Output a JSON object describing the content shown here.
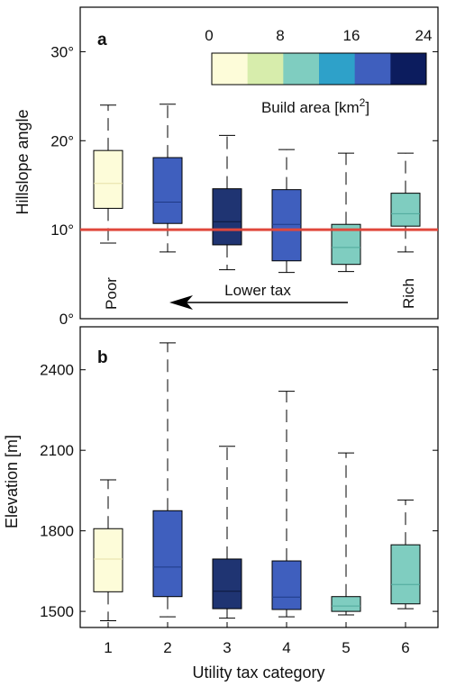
{
  "chart_data": [
    {
      "panel": "a",
      "type": "box",
      "ylabel": "Hillslope angle",
      "ylim": [
        0,
        35
      ],
      "yticks": [
        {
          "value": 0,
          "label": "0°"
        },
        {
          "value": 10,
          "label": "10°"
        },
        {
          "value": 20,
          "label": "20°"
        },
        {
          "value": 30,
          "label": "30°"
        }
      ],
      "reference_line": {
        "value": 10,
        "color": "#e0483c"
      },
      "boxes": [
        {
          "category": 1,
          "whisker_low": 8.5,
          "q1": 12.4,
          "median": 15.2,
          "q3": 18.9,
          "whisker_high": 24,
          "color": "#fdfcd9",
          "median_color": "#e6e0a8"
        },
        {
          "category": 2,
          "whisker_low": 7.5,
          "q1": 10.7,
          "median": 13.1,
          "q3": 18.1,
          "whisker_high": 24.1,
          "color": "#3f5fbe",
          "median_color": "#1f3a86"
        },
        {
          "category": 3,
          "whisker_low": 5.5,
          "q1": 8.3,
          "median": 10.9,
          "q3": 14.6,
          "whisker_high": 20.6,
          "color": "#1f3472",
          "median_color": "#0c1638"
        },
        {
          "category": 4,
          "whisker_low": 5.2,
          "q1": 6.5,
          "median": 10.6,
          "q3": 14.5,
          "whisker_high": 19,
          "color": "#3f5fbe",
          "median_color": "#1f3a86"
        },
        {
          "category": 5,
          "whisker_low": 5.3,
          "q1": 6.1,
          "median": 8.0,
          "q3": 10.6,
          "whisker_high": 18.6,
          "color": "#7fcdc0",
          "median_color": "#4fa89b"
        },
        {
          "category": 6,
          "whisker_low": 7.5,
          "q1": 10.4,
          "median": 11.8,
          "q3": 14.1,
          "whisker_high": 18.6,
          "color": "#7fcdc0",
          "median_color": "#4fa89b"
        }
      ],
      "annotations": {
        "left": "Poor",
        "arrow": "Lower tax",
        "right": "Rich"
      },
      "colorbar": {
        "label": "Build area [km",
        "label_sup": "2",
        "label_end": "]",
        "ticks": [
          "0",
          "8",
          "16",
          "24"
        ],
        "colors": [
          "#fdfcd9",
          "#d7edac",
          "#7fcdc0",
          "#2ea1c9",
          "#3f5fbe",
          "#0c1c5e"
        ]
      }
    },
    {
      "panel": "b",
      "type": "box",
      "ylabel": "Elevation [m]",
      "xlabel": "Utility tax category",
      "ylim": [
        1440,
        2560
      ],
      "yticks": [
        {
          "value": 1500,
          "label": "1500"
        },
        {
          "value": 1800,
          "label": "1800"
        },
        {
          "value": 2100,
          "label": "2100"
        },
        {
          "value": 2400,
          "label": "2400"
        }
      ],
      "categories": [
        "1",
        "2",
        "3",
        "4",
        "5",
        "6"
      ],
      "boxes": [
        {
          "category": 1,
          "whisker_low": 1465,
          "q1": 1573,
          "median": 1695,
          "q3": 1808,
          "whisker_high": 1990,
          "color": "#fdfcd9",
          "median_color": "#e6e0a8"
        },
        {
          "category": 2,
          "whisker_low": 1480,
          "q1": 1555,
          "median": 1665,
          "q3": 1875,
          "whisker_high": 2500,
          "color": "#3f5fbe",
          "median_color": "#1f3a86"
        },
        {
          "category": 3,
          "whisker_low": 1475,
          "q1": 1510,
          "median": 1575,
          "q3": 1695,
          "whisker_high": 2115,
          "color": "#1f3472",
          "median_color": "#0c1638"
        },
        {
          "category": 4,
          "whisker_low": 1480,
          "q1": 1507,
          "median": 1553,
          "q3": 1688,
          "whisker_high": 2320,
          "color": "#3f5fbe",
          "median_color": "#1f3a86"
        },
        {
          "category": 5,
          "whisker_low": 1487,
          "q1": 1500,
          "median": 1520,
          "q3": 1555,
          "whisker_high": 2090,
          "color": "#7fcdc0",
          "median_color": "#4fa89b"
        },
        {
          "category": 6,
          "whisker_low": 1510,
          "q1": 1528,
          "median": 1600,
          "q3": 1748,
          "whisker_high": 1915,
          "color": "#7fcdc0",
          "median_color": "#4fa89b"
        }
      ]
    }
  ]
}
